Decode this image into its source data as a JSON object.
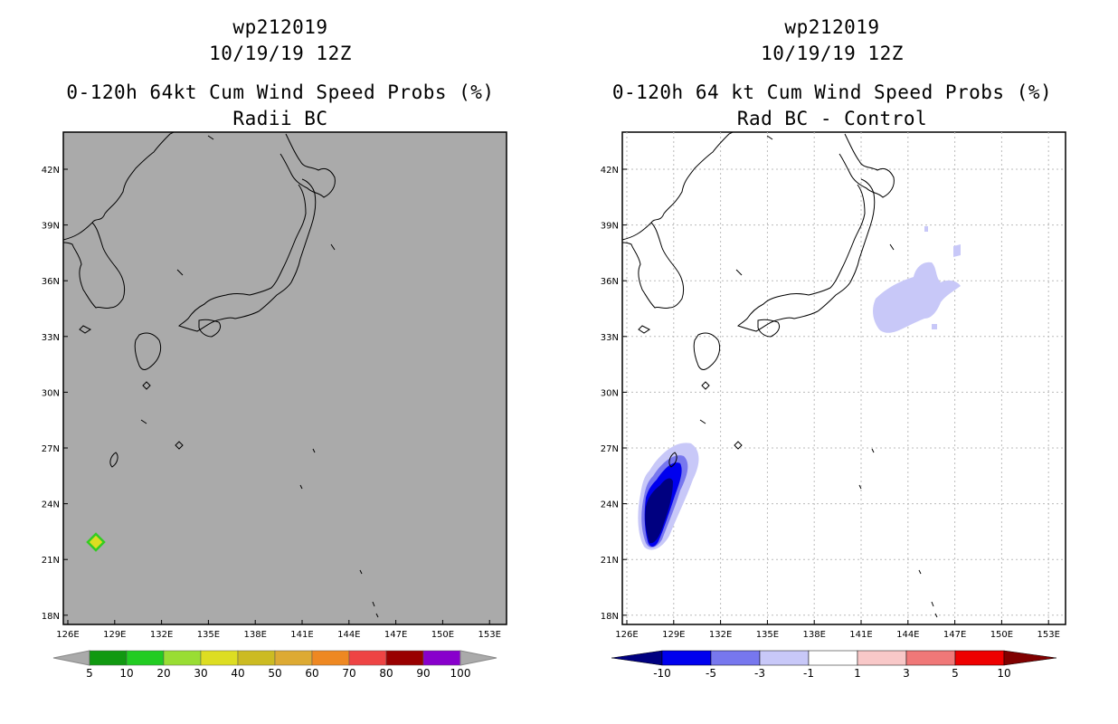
{
  "left_panel": {
    "storm_id": "wp212019",
    "datetime": "10/19/19 12Z",
    "product": "0-120h 64kt Cum Wind Speed Probs (%)",
    "subtitle": "Radii BC",
    "background_color": "#aaaaaa",
    "colorbar": {
      "labels": [
        "5",
        "10",
        "20",
        "30",
        "40",
        "50",
        "60",
        "70",
        "80",
        "90",
        "100"
      ],
      "colors": [
        "#119911",
        "#22cc22",
        "#99dd33",
        "#dddd22",
        "#ccbb22",
        "#ddaa33",
        "#ee8822",
        "#ee4444",
        "#990000",
        "#8800cc",
        "#aaaaaa"
      ]
    }
  },
  "right_panel": {
    "storm_id": "wp212019",
    "datetime": "10/19/19 12Z",
    "product": "0-120h 64 kt Cum Wind Speed Probs (%)",
    "subtitle": "Rad BC - Control",
    "colorbar": {
      "labels": [
        "-10",
        "-5",
        "-3",
        "-1",
        "1",
        "3",
        "5",
        "10"
      ],
      "colors": [
        "#000080",
        "#0000ee",
        "#7777ee",
        "#c8c8f8",
        "#ffffff",
        "#f8c8c8",
        "#f07878",
        "#ee0000",
        "#800000"
      ]
    }
  },
  "axes": {
    "lat_labels": [
      "42N",
      "39N",
      "36N",
      "33N",
      "30N",
      "27N",
      "24N",
      "21N",
      "18N"
    ],
    "lon_labels": [
      "126E",
      "129E",
      "132E",
      "135E",
      "138E",
      "141E",
      "144E",
      "147E",
      "150E",
      "153E"
    ],
    "lon_range": [
      126,
      153.5
    ],
    "lat_range": [
      17.5,
      44
    ]
  },
  "colors": {
    "coastline": "#000000",
    "grid": "#bbbbbb"
  }
}
